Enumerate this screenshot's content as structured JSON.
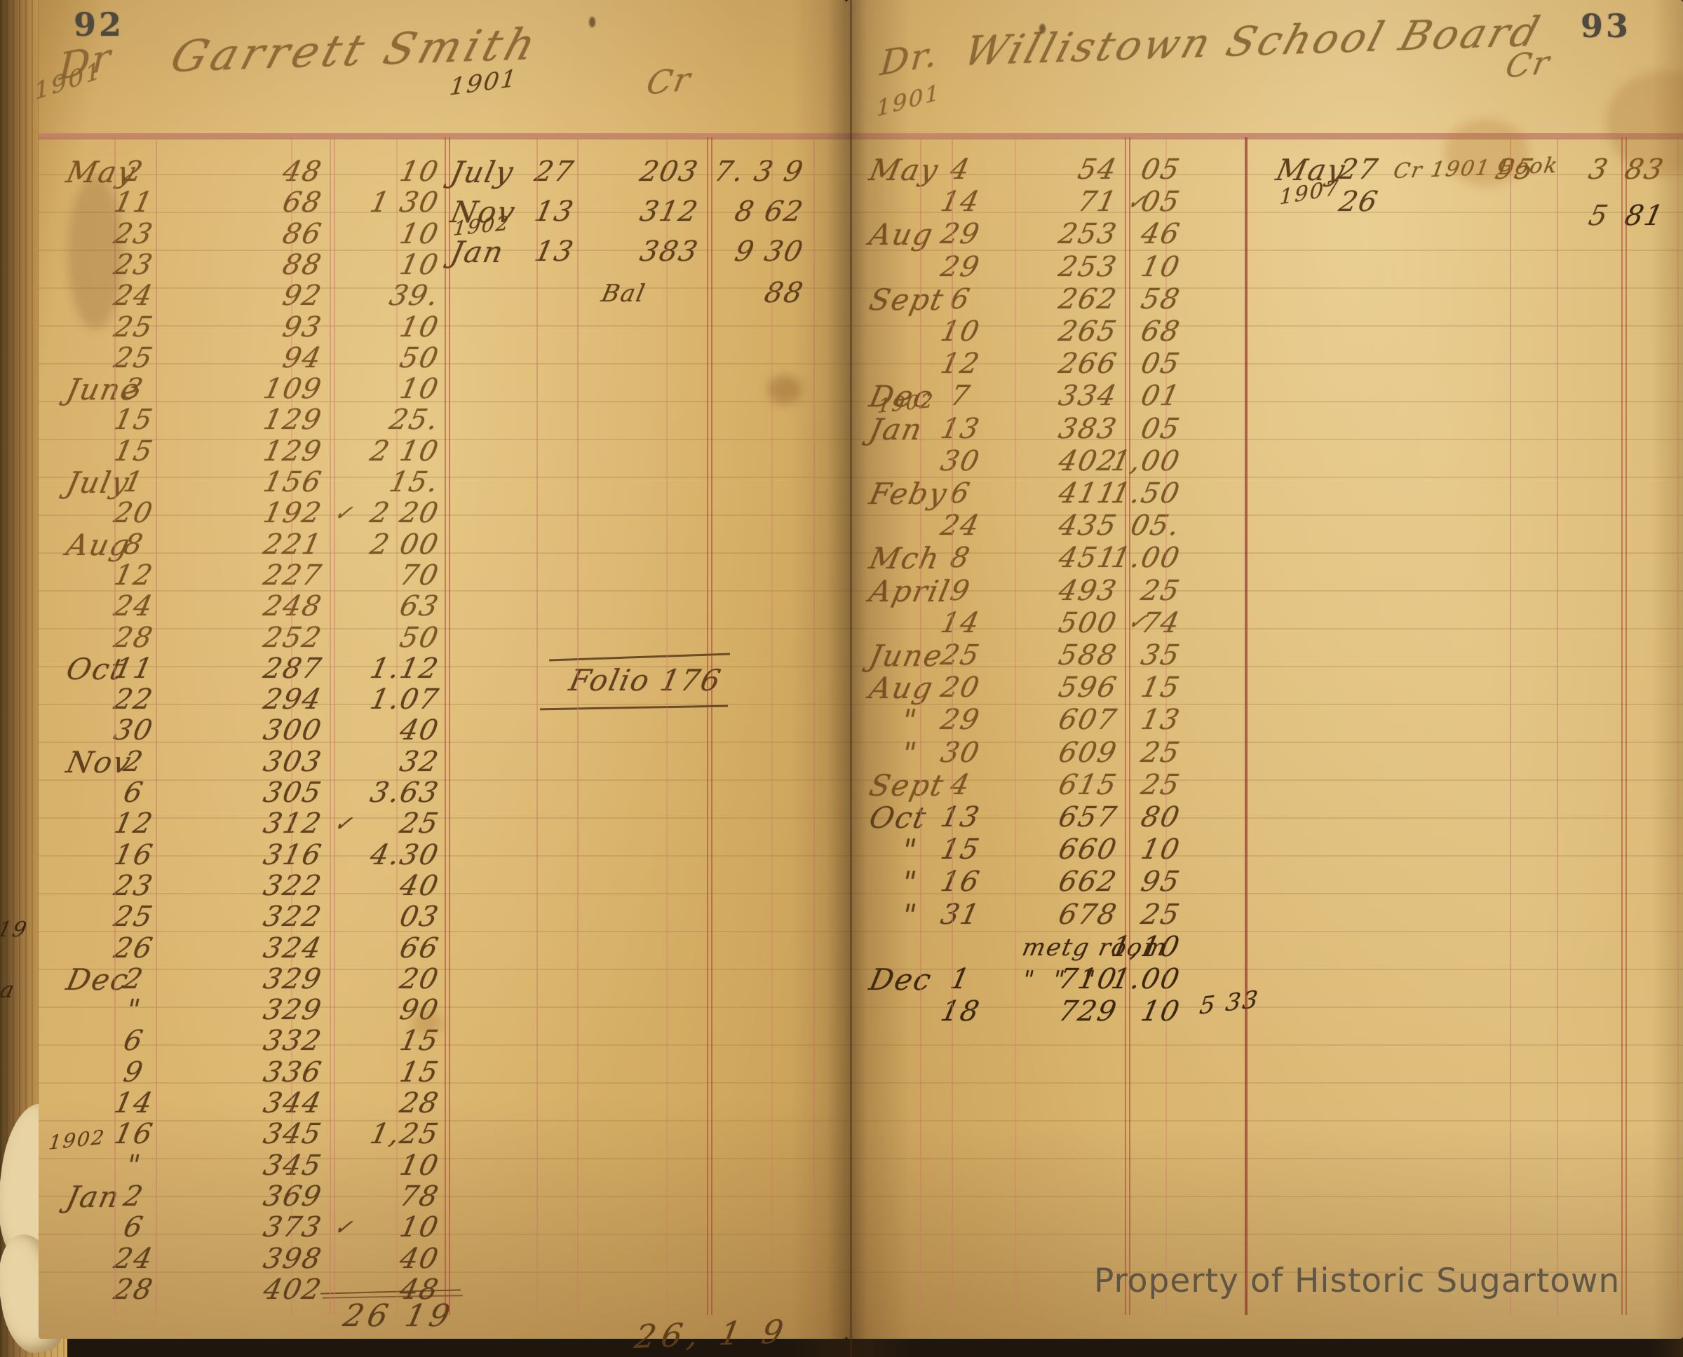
{
  "page_left": {
    "page_number": "92",
    "dr": "Dr",
    "year": "1901",
    "title": "Garrett Smith",
    "cr": "Cr",
    "credit_year": "1901",
    "debit_rows": [
      {
        "m": "May",
        "d": "2",
        "ref": "48",
        "amt": "10"
      },
      {
        "d": "11",
        "ref": "68",
        "amt": "1 30"
      },
      {
        "d": "23",
        "ref": "86",
        "amt": "10"
      },
      {
        "d": "23",
        "ref": "88",
        "amt": "10"
      },
      {
        "d": "24",
        "ref": "92",
        "amt": "39."
      },
      {
        "d": "25",
        "ref": "93",
        "amt": "10"
      },
      {
        "d": "25",
        "ref": "94",
        "amt": "50"
      },
      {
        "m": "June",
        "d": "3",
        "ref": "109",
        "amt": "10"
      },
      {
        "d": "15",
        "ref": "129",
        "amt": "25."
      },
      {
        "d": "15",
        "ref": "129",
        "amt": "2 10"
      },
      {
        "m": "July",
        "d": "1",
        "ref": "156",
        "amt": "15."
      },
      {
        "d": "20",
        "ref": "192",
        "chk": true,
        "amt": "2 20"
      },
      {
        "m": "Aug",
        "d": "8",
        "ref": "221",
        "amt": "2 00"
      },
      {
        "d": "12",
        "ref": "227",
        "amt": "70"
      },
      {
        "d": "24",
        "ref": "248",
        "amt": "63"
      },
      {
        "d": "28",
        "ref": "252",
        "amt": "50"
      },
      {
        "m": "Oct",
        "d": "11",
        "ref": "287",
        "amt": "1.12"
      },
      {
        "d": "22",
        "ref": "294",
        "amt": "1.07"
      },
      {
        "d": "30",
        "ref": "300",
        "amt": "40"
      },
      {
        "m": "Nov",
        "d": "2",
        "ref": "303",
        "amt": "32"
      },
      {
        "d": "6",
        "ref": "305",
        "amt": "3.63"
      },
      {
        "d": "12",
        "ref": "312",
        "chk": true,
        "amt": "25"
      },
      {
        "d": "16",
        "ref": "316",
        "amt": "4.30"
      },
      {
        "d": "23",
        "ref": "322",
        "amt": "40"
      },
      {
        "d": "25",
        "ref": "322",
        "amt": "03"
      },
      {
        "d": "26",
        "ref": "324",
        "amt": "66"
      },
      {
        "m": "Dec",
        "d": "2",
        "ref": "329",
        "amt": "20"
      },
      {
        "d": "\"",
        "ref": "329",
        "amt": "90"
      },
      {
        "d": "6",
        "ref": "332",
        "amt": "15"
      },
      {
        "d": "9",
        "ref": "336",
        "amt": "15"
      },
      {
        "d": "14",
        "ref": "344",
        "amt": "28"
      },
      {
        "d": "16",
        "ref": "345",
        "amt": "1,25"
      },
      {
        "pre": "1902",
        "d": "\"",
        "ref": "345",
        "amt": "10"
      },
      {
        "m": "Jan",
        "d": "2",
        "ref": "369",
        "amt": "78"
      },
      {
        "d": "6",
        "ref": "373",
        "chk": true,
        "amt": "10"
      },
      {
        "d": "24",
        "ref": "398",
        "amt": "40"
      },
      {
        "d": "28",
        "ref": "402",
        "amt": "48"
      }
    ],
    "debit_total": "26 19",
    "credit_rows": [
      {
        "m": "July",
        "d": "27",
        "ref": "203",
        "amt": "7. 3 9"
      },
      {
        "m": "Nov",
        "d": "13",
        "ref": "312",
        "amt": "8 62"
      },
      {
        "pre": "1902",
        "m": "Jan",
        "d": "13",
        "ref": "383",
        "amt": "9 30"
      },
      {
        "desc": "Bal",
        "amt": "88"
      }
    ],
    "folio_note": "Folio 176",
    "bottom_total": "26, 1 9"
  },
  "page_right": {
    "page_number": "93",
    "dr": "Dr.",
    "year": "1901",
    "title": "Willistown School Board",
    "cr": "Cr",
    "debit_rows": [
      {
        "m": "May",
        "d": "4",
        "ref": "54",
        "amt": "05"
      },
      {
        "d": "14",
        "ref": "71",
        "chk": true,
        "amt": "05"
      },
      {
        "m": "Aug",
        "d": "29",
        "ref": "253",
        "amt": "46"
      },
      {
        "d": "29",
        "ref": "253",
        "amt": "10"
      },
      {
        "m": "Sept",
        "d": "6",
        "ref": "262",
        "amt": "58"
      },
      {
        "d": "10",
        "ref": "265",
        "amt": "68"
      },
      {
        "d": "12",
        "ref": "266",
        "amt": "05"
      },
      {
        "m": "Dec",
        "d": "7",
        "ref": "334",
        "amt": "01"
      },
      {
        "pre": "1902",
        "m": "Jan",
        "d": "13",
        "ref": "383",
        "amt": "05"
      },
      {
        "d": "30",
        "ref": "402",
        "amt": "1,00"
      },
      {
        "m": "Feby",
        "d": "6",
        "ref": "411",
        "amt": "1.50"
      },
      {
        "d": "24",
        "ref": "435",
        "amt": "05."
      },
      {
        "m": "Mch",
        "d": "8",
        "ref": "451",
        "amt": "1.00"
      },
      {
        "m": "April",
        "d": "9",
        "ref": "493",
        "amt": "25"
      },
      {
        "d": "14",
        "ref": "500",
        "amtChk": true,
        "amt": "74"
      },
      {
        "m": "June",
        "d": "25",
        "ref": "588",
        "amt": "35"
      },
      {
        "m": "Aug",
        "d": "20",
        "ref": "596",
        "amt": "15"
      },
      {
        "m": "\"",
        "d": "29",
        "ref": "607",
        "amt": "13"
      },
      {
        "m": "\"",
        "d": "30",
        "ref": "609",
        "amt": "25"
      },
      {
        "m": "Sept",
        "d": "4",
        "ref": "615",
        "amt": "25"
      },
      {
        "m": "Oct",
        "d": "13",
        "ref": "657",
        "amt": "80"
      },
      {
        "m": "\"",
        "d": "15",
        "ref": "660",
        "amt": "10"
      },
      {
        "m": "\"",
        "d": "16",
        "ref": "662",
        "amt": "95"
      },
      {
        "m": "\"",
        "d": "31",
        "ref": "678",
        "amt": "25"
      },
      {
        "desc": "metg room",
        "amt": "1,10",
        "ink": "ink-dark"
      },
      {
        "m": "Dec",
        "d": "1",
        "desc": "\"  \"  \"",
        "ref": "710",
        "amt": "1.00",
        "ink": "ink-dark"
      },
      {
        "d": "18",
        "ref": "729",
        "amt": "10",
        "note": true,
        "ink": "ink-dark"
      }
    ],
    "annotation": "5 33",
    "credit_rows": [
      {
        "m": "May",
        "d": "27",
        "desc": "Cr 1901 Book",
        "ref": "95",
        "dollars": "3",
        "cents": "83"
      },
      {
        "m": "1907",
        "d": "26",
        "dollars": "5",
        "cents": "81"
      }
    ]
  },
  "margin_marks": [
    "19",
    "a"
  ],
  "watermark": "Property of Historic Sugartown",
  "glyphs": {
    "check": "✓"
  },
  "colors": {
    "paper": "#d8b26c",
    "ink_light": "#7a5322",
    "ink_mid": "#5d3d1b",
    "ink_dark": "#39250f",
    "line_pink": "#c97c6a",
    "line_red": "#9e3628",
    "watermark": "#4a463f"
  }
}
